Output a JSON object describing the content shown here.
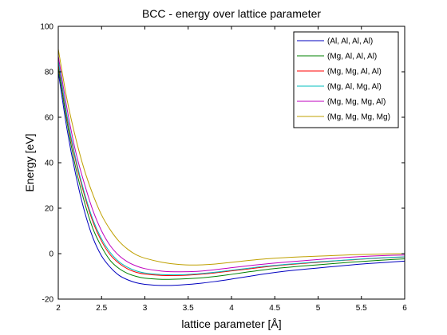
{
  "chart_data": {
    "type": "line",
    "title": "BCC - energy over lattice parameter",
    "xlabel": "lattice parameter [Å]",
    "ylabel": "Energy [eV]",
    "xlim": [
      2,
      6
    ],
    "ylim": [
      -20,
      100
    ],
    "xticks": [
      2,
      2.5,
      3,
      3.5,
      4,
      4.5,
      5,
      5.5,
      6
    ],
    "xtick_labels": [
      "2",
      "2.5",
      "3",
      "3.5",
      "4",
      "4.5",
      "5",
      "5.5",
      "6"
    ],
    "yticks": [
      -20,
      0,
      20,
      40,
      60,
      80,
      100
    ],
    "ytick_labels": [
      "-20",
      "0",
      "20",
      "40",
      "60",
      "80",
      "100"
    ],
    "grid": false,
    "legend_position": "top-right",
    "x": [
      2.0,
      2.1,
      2.2,
      2.3,
      2.4,
      2.5,
      2.6,
      2.7,
      2.8,
      2.9,
      3.0,
      3.2,
      3.4,
      3.6,
      3.8,
      4.0,
      4.2,
      4.4,
      4.6,
      4.8,
      5.0,
      5.2,
      5.4,
      5.6,
      5.8,
      6.0
    ],
    "series": [
      {
        "name": "(Al, Al, Al, Al)",
        "color": "#0000bf",
        "values": [
          80,
          55,
          35,
          19,
          7,
          -1,
          -6,
          -9.5,
          -11.5,
          -12.8,
          -13.5,
          -14,
          -13.8,
          -13.2,
          -12.3,
          -11.2,
          -10,
          -8.8,
          -7.8,
          -7,
          -6.3,
          -5.6,
          -4.9,
          -4.3,
          -3.8,
          -3.3
        ]
      },
      {
        "name": "(Mg, Al, Al, Al)",
        "color": "#008000",
        "values": [
          82,
          58,
          38,
          23,
          11,
          3,
          -3,
          -6.5,
          -8.7,
          -10,
          -10.8,
          -11.3,
          -11.2,
          -10.8,
          -10.1,
          -9.1,
          -8,
          -7,
          -6.2,
          -5.5,
          -4.9,
          -4.3,
          -3.7,
          -3.2,
          -2.7,
          -2.3
        ]
      },
      {
        "name": "(Mg, Mg, Al, Al)",
        "color": "#ff0000",
        "values": [
          84,
          60,
          41,
          26,
          14,
          5.5,
          -0.5,
          -4.2,
          -6.7,
          -8.2,
          -9,
          -9.6,
          -9.6,
          -9.2,
          -8.5,
          -7.6,
          -6.7,
          -5.8,
          -5,
          -4.4,
          -3.8,
          -3.2,
          -2.7,
          -2.2,
          -1.8,
          -1.5
        ]
      },
      {
        "name": "(Mg, Al, Mg, Al)",
        "color": "#00bfbf",
        "values": [
          85,
          61,
          42,
          27,
          15,
          6.5,
          0.5,
          -3.5,
          -6,
          -7.6,
          -8.5,
          -9.2,
          -9.3,
          -8.9,
          -8.2,
          -7.3,
          -6.4,
          -5.5,
          -4.8,
          -4.2,
          -3.6,
          -3.1,
          -2.6,
          -2.1,
          -1.7,
          -1.4
        ]
      },
      {
        "name": "(Mg, Mg, Mg, Al)",
        "color": "#bf00bf",
        "values": [
          87,
          64,
          45,
          31,
          19,
          10,
          3.5,
          -0.8,
          -3.6,
          -5.4,
          -6.6,
          -7.7,
          -8,
          -7.8,
          -7.1,
          -6.2,
          -5.3,
          -4.5,
          -3.8,
          -3.2,
          -2.6,
          -2,
          -1.5,
          -1.1,
          -0.8,
          -0.6
        ]
      },
      {
        "name": "(Mg, Mg, Mg, Mg)",
        "color": "#bfa000",
        "values": [
          90,
          68,
          51,
          37,
          26,
          17,
          10.5,
          5.5,
          2,
          -0.5,
          -2,
          -3.8,
          -4.8,
          -5,
          -4.6,
          -3.8,
          -3,
          -2.3,
          -1.8,
          -1.4,
          -1.1,
          -0.8,
          -0.5,
          -0.3,
          -0.1,
          0
        ]
      }
    ]
  }
}
